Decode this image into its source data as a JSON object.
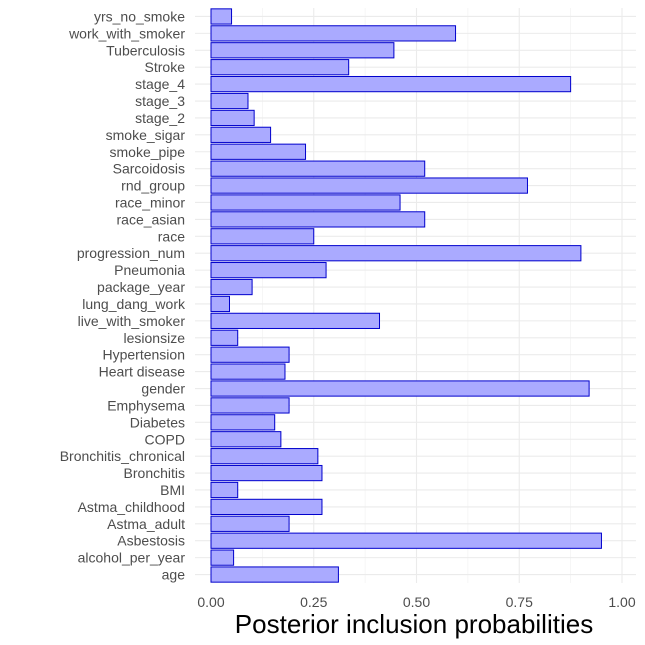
{
  "chart_data": {
    "type": "bar",
    "orientation": "horizontal",
    "title": "",
    "xlabel": "Posterior inclusion probabilities",
    "ylabel": "",
    "xlim": [
      0,
      1
    ],
    "xticks": [
      "0.00",
      "0.25",
      "0.50",
      "0.75",
      "1.00"
    ],
    "grid": true,
    "legend": "none",
    "bar_fill": "#aaaaff",
    "bar_stroke": "#0000cc",
    "categories": [
      "age",
      "alcohol_per_year",
      "Asbestosis",
      "Astma_adult",
      "Astma_childhood",
      "BMI",
      "Bronchitis",
      "Bronchitis_chronical",
      "COPD",
      "Diabetes",
      "Emphysema",
      "gender",
      "Heart disease",
      "Hypertension",
      "lesionsize",
      "live_with_smoker",
      "lung_dang_work",
      "package_year",
      "Pneumonia",
      "progression_num",
      "race",
      "race_asian",
      "race_minor",
      "rnd_group",
      "Sarcoidosis",
      "smoke_pipe",
      "smoke_sigar",
      "stage_2",
      "stage_3",
      "stage_4",
      "Stroke",
      "Tuberculosis",
      "work_with_smoker",
      "yrs_no_smoke"
    ],
    "values": [
      0.31,
      0.055,
      0.95,
      0.19,
      0.27,
      0.065,
      0.27,
      0.26,
      0.17,
      0.155,
      0.19,
      0.92,
      0.18,
      0.19,
      0.065,
      0.41,
      0.045,
      0.1,
      0.28,
      0.9,
      0.25,
      0.52,
      0.46,
      0.77,
      0.52,
      0.23,
      0.145,
      0.105,
      0.09,
      0.875,
      0.335,
      0.445,
      0.595,
      0.05
    ]
  }
}
